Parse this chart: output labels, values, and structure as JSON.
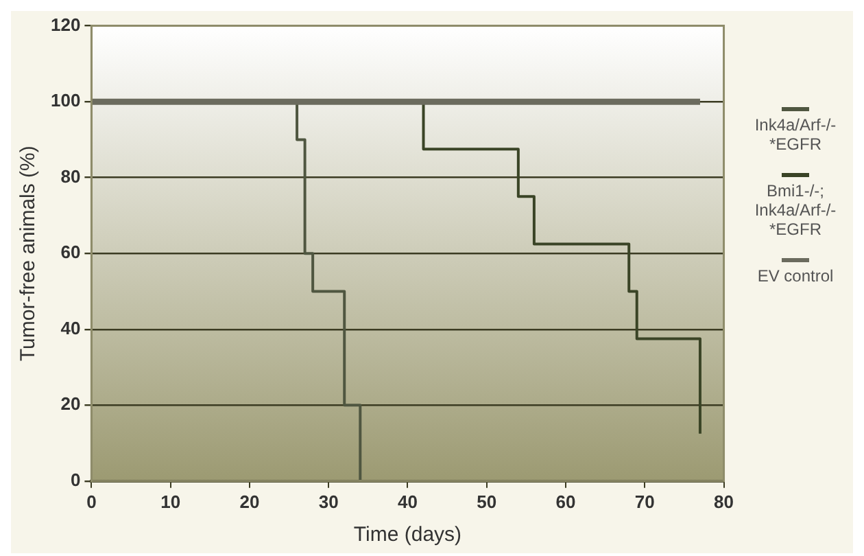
{
  "chart_data": {
    "type": "step",
    "xlabel": "Time (days)",
    "ylabel": "Tumor-free animals (%)",
    "series": [
      {
        "name": "Ink4a/Arf-/- *EGFR",
        "color": "#4f5640",
        "x": [
          0,
          26,
          27,
          28,
          32,
          34
        ],
        "values": [
          100,
          90,
          60,
          50,
          20,
          0
        ]
      },
      {
        "name": "Bmi1-/-; Ink4a/Arf-/- *EGFR",
        "color": "#3a4426",
        "x": [
          0,
          42,
          54,
          56,
          68,
          69,
          77
        ],
        "values": [
          100,
          87.5,
          75,
          62.5,
          50,
          37.5,
          12.5
        ]
      },
      {
        "name": "EV control",
        "color": "#6b6b5e",
        "x": [
          0,
          77
        ],
        "values": [
          100,
          100
        ]
      }
    ],
    "xlim": [
      0,
      80
    ],
    "xticks": [
      0,
      10,
      20,
      30,
      40,
      50,
      60,
      70,
      80
    ],
    "ylim": [
      0,
      120
    ],
    "yticks": [
      0,
      20,
      40,
      60,
      80,
      100,
      120
    ],
    "grid": "y",
    "legend": "right",
    "marker": "none",
    "line_style": "solid"
  }
}
